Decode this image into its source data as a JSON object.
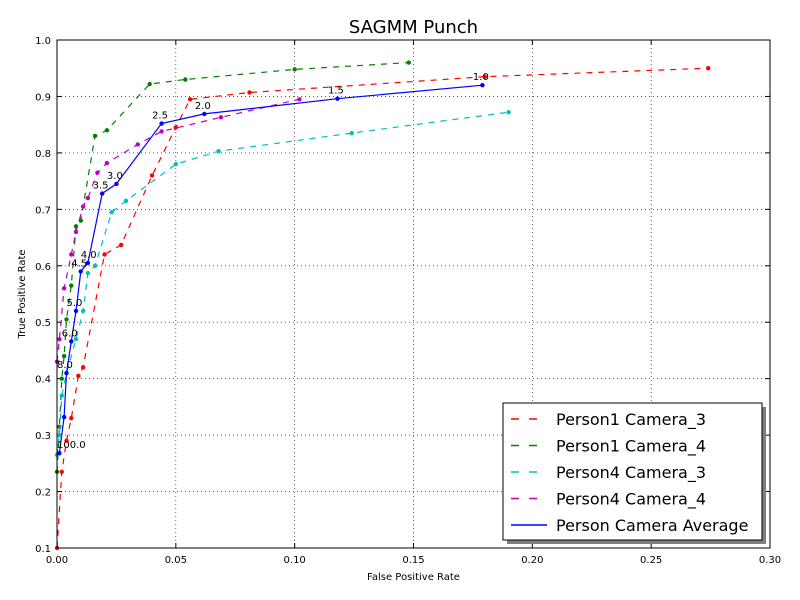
{
  "chart_data": {
    "type": "line",
    "title": "SAGMM Punch",
    "xlabel": "False Positive Rate",
    "ylabel": "True Positive Rate",
    "xlim": [
      0.0,
      0.3
    ],
    "ylim": [
      0.1,
      1.0
    ],
    "xticks": [
      0.0,
      0.05,
      0.1,
      0.15,
      0.2,
      0.25,
      0.3
    ],
    "xtick_labels": [
      "0.00",
      "0.05",
      "0.10",
      "0.15",
      "0.20",
      "0.25",
      "0.30"
    ],
    "yticks": [
      0.1,
      0.2,
      0.3,
      0.4,
      0.5,
      0.6,
      0.7,
      0.8,
      0.9,
      1.0
    ],
    "ytick_labels": [
      "0.1",
      "0.2",
      "0.3",
      "0.4",
      "0.5",
      "0.6",
      "0.7",
      "0.8",
      "0.9",
      "1.0"
    ],
    "grid": true,
    "legend_position": "bottom-right",
    "series": [
      {
        "name": "Person1 Camera_3",
        "color": "#ff0000",
        "style": "dashed",
        "points": [
          [
            0.0,
            0.1
          ],
          [
            0.002,
            0.235
          ],
          [
            0.004,
            0.29
          ],
          [
            0.006,
            0.33
          ],
          [
            0.009,
            0.405
          ],
          [
            0.011,
            0.42
          ],
          [
            0.02,
            0.62
          ],
          [
            0.027,
            0.637
          ],
          [
            0.04,
            0.76
          ],
          [
            0.05,
            0.845
          ],
          [
            0.056,
            0.895
          ],
          [
            0.081,
            0.907
          ],
          [
            0.18,
            0.935
          ],
          [
            0.274,
            0.95
          ]
        ]
      },
      {
        "name": "Person1 Camera_4",
        "color": "#008000",
        "style": "dashed",
        "points": [
          [
            0.0,
            0.235
          ],
          [
            0.001,
            0.315
          ],
          [
            0.002,
            0.4
          ],
          [
            0.003,
            0.44
          ],
          [
            0.004,
            0.505
          ],
          [
            0.006,
            0.565
          ],
          [
            0.008,
            0.67
          ],
          [
            0.01,
            0.68
          ],
          [
            0.016,
            0.83
          ],
          [
            0.021,
            0.84
          ],
          [
            0.039,
            0.922
          ],
          [
            0.054,
            0.93
          ],
          [
            0.1,
            0.948
          ],
          [
            0.148,
            0.96
          ]
        ]
      },
      {
        "name": "Person4 Camera_3",
        "color": "#00bfbf",
        "style": "dashed",
        "points": [
          [
            0.0,
            0.265
          ],
          [
            0.001,
            0.3
          ],
          [
            0.002,
            0.37
          ],
          [
            0.004,
            0.41
          ],
          [
            0.008,
            0.47
          ],
          [
            0.011,
            0.52
          ],
          [
            0.013,
            0.587
          ],
          [
            0.016,
            0.6
          ],
          [
            0.023,
            0.695
          ],
          [
            0.029,
            0.715
          ],
          [
            0.05,
            0.78
          ],
          [
            0.068,
            0.803
          ],
          [
            0.124,
            0.835
          ],
          [
            0.19,
            0.872
          ]
        ]
      },
      {
        "name": "Person4 Camera_4",
        "color": "#bf00bf",
        "style": "dashed",
        "points": [
          [
            0.0,
            0.43
          ],
          [
            0.001,
            0.47
          ],
          [
            0.003,
            0.56
          ],
          [
            0.006,
            0.62
          ],
          [
            0.008,
            0.66
          ],
          [
            0.011,
            0.705
          ],
          [
            0.013,
            0.72
          ],
          [
            0.017,
            0.765
          ],
          [
            0.021,
            0.782
          ],
          [
            0.034,
            0.815
          ],
          [
            0.044,
            0.838
          ],
          [
            0.069,
            0.863
          ],
          [
            0.102,
            0.895
          ]
        ]
      },
      {
        "name": "Person Camera Average",
        "color": "#0000ff",
        "style": "solid",
        "points": [
          [
            0.001,
            0.268
          ],
          [
            0.003,
            0.332
          ],
          [
            0.004,
            0.41
          ],
          [
            0.006,
            0.466
          ],
          [
            0.008,
            0.52
          ],
          [
            0.01,
            0.59
          ],
          [
            0.013,
            0.605
          ],
          [
            0.019,
            0.728
          ],
          [
            0.025,
            0.745
          ],
          [
            0.044,
            0.852
          ],
          [
            0.062,
            0.869
          ],
          [
            0.118,
            0.896
          ],
          [
            0.179,
            0.92
          ]
        ]
      }
    ],
    "annotations": [
      {
        "text": "100.0",
        "x": 0.0,
        "y": 0.268
      },
      {
        "text": "8.0",
        "x": 0.0,
        "y": 0.41
      },
      {
        "text": "6.0",
        "x": 0.002,
        "y": 0.466
      },
      {
        "text": "5.0",
        "x": 0.004,
        "y": 0.52
      },
      {
        "text": "4.5",
        "x": 0.006,
        "y": 0.59
      },
      {
        "text": "4.0",
        "x": 0.01,
        "y": 0.605
      },
      {
        "text": "3.5",
        "x": 0.015,
        "y": 0.728
      },
      {
        "text": "3.0",
        "x": 0.021,
        "y": 0.745
      },
      {
        "text": "2.5",
        "x": 0.04,
        "y": 0.852
      },
      {
        "text": "2.0",
        "x": 0.058,
        "y": 0.869
      },
      {
        "text": "1.5",
        "x": 0.114,
        "y": 0.896
      },
      {
        "text": "1.0",
        "x": 0.175,
        "y": 0.92
      }
    ]
  }
}
